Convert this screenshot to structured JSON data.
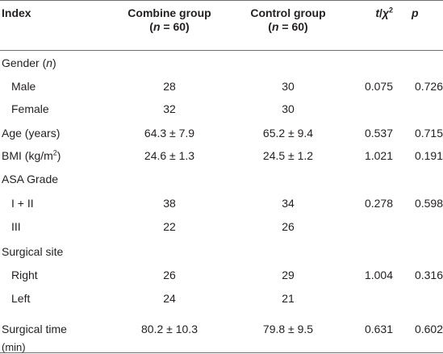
{
  "header": {
    "index": "Index",
    "combine": [
      "Combine group",
      "(",
      "n",
      " = 60)"
    ],
    "control": [
      "Control group",
      "(",
      "n",
      " = 60)"
    ],
    "stat": [
      "t",
      "/",
      "χ",
      "2"
    ],
    "p": "p"
  },
  "rows": [
    {
      "label": [
        "Gender (",
        "n",
        ")"
      ]
    },
    {
      "label": "Male",
      "combine": "28",
      "control": "30",
      "stat": "0.075",
      "p": "0.726"
    },
    {
      "label": "Female",
      "combine": "32",
      "control": "30"
    },
    {
      "label": "Age (years)",
      "combine": "64.3 ± 7.9",
      "control": "65.2 ± 9.4",
      "stat": "0.537",
      "p": "0.715"
    },
    {
      "label": [
        "BMI (kg/m",
        "2",
        ")"
      ],
      "combine": "24.6 ± 1.3",
      "control": "24.5 ± 1.2",
      "stat": "1.021",
      "p": "0.191"
    },
    {
      "label": "ASA Grade"
    },
    {
      "label": "I + II",
      "combine": "38",
      "control": "34",
      "stat": "0.278",
      "p": "0.598"
    },
    {
      "label": "III",
      "combine": "22",
      "control": "26"
    },
    {
      "label": "Surgical site"
    },
    {
      "label": "Right",
      "combine": "26",
      "control": "29",
      "stat": "1.004",
      "p": "0.316"
    },
    {
      "label": "Left",
      "combine": "24",
      "control": "21"
    },
    {
      "label": [
        "Surgical time",
        "(min)"
      ],
      "combine": "80.2 ± 10.3",
      "control": "79.8 ± 9.5",
      "stat": "0.631",
      "p": "0.602"
    }
  ]
}
